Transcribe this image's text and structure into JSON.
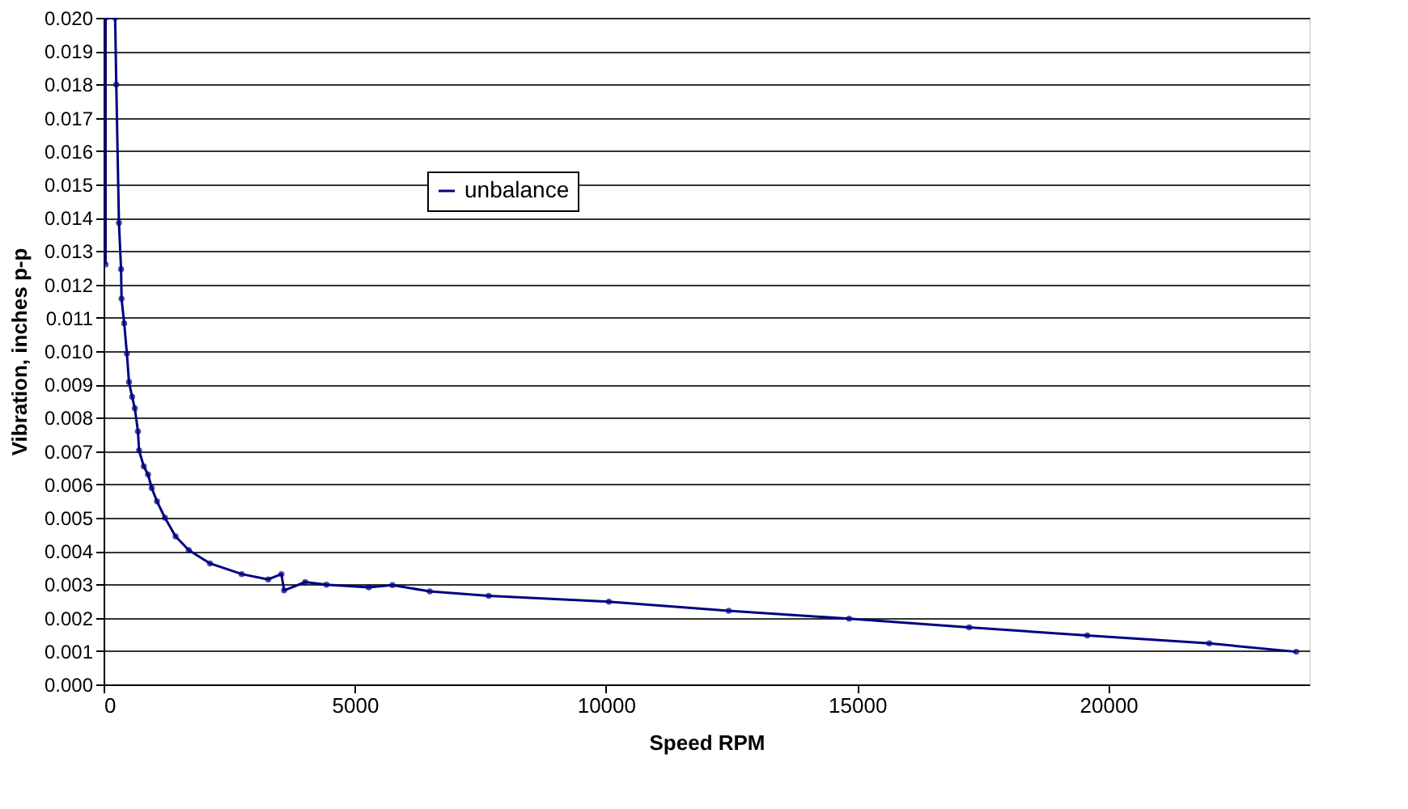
{
  "chart_data": {
    "type": "line",
    "xlabel": "Speed RPM",
    "ylabel": "Vibration, inches p-p",
    "xlim": [
      0,
      24000
    ],
    "xticks": [
      0,
      5000,
      10000,
      15000,
      20000
    ],
    "ylim": [
      0,
      0.02
    ],
    "yticks": [
      {
        "value": 0,
        "label": "0.000"
      },
      {
        "value": 0.001,
        "label": "0.001"
      },
      {
        "value": 0.002,
        "label": "0.002"
      },
      {
        "value": 0.003,
        "label": "0.003"
      },
      {
        "value": 0.004,
        "label": "0.004"
      },
      {
        "value": 0.005,
        "label": "0.005"
      },
      {
        "value": 0.006,
        "label": "0.006"
      },
      {
        "value": 0.007,
        "label": "0.007"
      },
      {
        "value": 0.008,
        "label": "0.008"
      },
      {
        "value": 0.009,
        "label": "0.009"
      },
      {
        "value": 0.01,
        "label": "0.010"
      },
      {
        "value": 0.011,
        "label": "0.011"
      },
      {
        "value": 0.012,
        "label": "0.012"
      },
      {
        "value": 0.013,
        "label": "0.013"
      },
      {
        "value": 0.014,
        "label": "0.014"
      },
      {
        "value": 0.015,
        "label": "0.015"
      },
      {
        "value": 0.016,
        "label": "0.016"
      },
      {
        "value": 0.017,
        "label": "0.017"
      },
      {
        "value": 0.018,
        "label": "0.018"
      },
      {
        "value": 0.019,
        "label": "0.019"
      },
      {
        "value": 0.02,
        "label": "0.020"
      }
    ],
    "grid": "y",
    "legend": "top",
    "marker": "circle",
    "line_style": "solid",
    "series": [
      {
        "name": "unbalance",
        "color": "#000080",
        "x": [
          40,
          40,
          230,
          253,
          306,
          348,
          358,
          411,
          464,
          506,
          569,
          622,
          685,
          706,
          801,
          885,
          959,
          1064,
          1222,
          1433,
          1696,
          2118,
          2750,
          3277,
          3540,
          3593,
          4014,
          4436,
          5279,
          5750,
          6493,
          7666,
          10058,
          12443,
          14840,
          17230,
          19580,
          22010,
          23740
        ],
        "values": [
          0.0126,
          0.02,
          0.02,
          0.018,
          0.01385,
          0.01246,
          0.01157,
          0.01083,
          0.00993,
          0.00907,
          0.00863,
          0.00828,
          0.00759,
          0.00702,
          0.00654,
          0.0063,
          0.00589,
          0.00549,
          0.005,
          0.00444,
          0.00403,
          0.00363,
          0.00331,
          0.00315,
          0.00331,
          0.00282,
          0.00307,
          0.00299,
          0.00291,
          0.00298,
          0.00279,
          0.00266,
          0.00248,
          0.00221,
          0.00197,
          0.00171,
          0.00147,
          0.00123,
          0.00098
        ]
      }
    ]
  }
}
